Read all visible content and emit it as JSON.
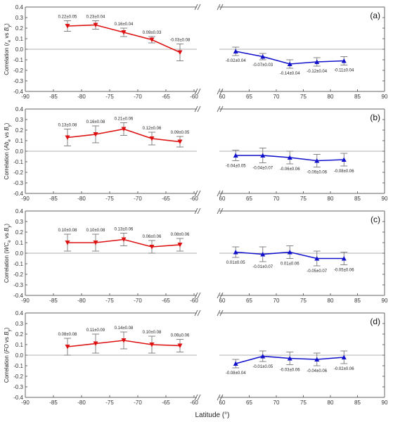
{
  "xlabel": "Latitude (°)",
  "colors": {
    "south": "#dd1111",
    "north": "#1111cc",
    "error": "#777777",
    "axis": "#666666",
    "zero": "#999999"
  },
  "chart_data": [
    {
      "type": "line",
      "panel_label": "(a)",
      "ylabel": {
        "prefix": "Correlation (",
        "var": "r",
        "var_sub": "e",
        "mid": " vs ",
        "b": "B",
        "b_sub": "y",
        "suffix": ")"
      },
      "ylim": [
        -0.4,
        0.4
      ],
      "yticks": [
        "-0.4",
        "-0.3",
        "-0.2",
        "-0.1",
        "0.0",
        "0.1",
        "0.2",
        "0.3",
        "0.4"
      ],
      "xticks_south": [
        "-90",
        "-85",
        "-80",
        "-75",
        "-70",
        "-65",
        "-60"
      ],
      "xticks_north": [
        "60",
        "65",
        "70",
        "75",
        "80",
        "85",
        "90"
      ],
      "south": {
        "x": [
          -82.5,
          -77.5,
          -72.5,
          -67.5,
          -62.5
        ],
        "y": [
          0.22,
          0.23,
          0.16,
          0.09,
          -0.03
        ],
        "err": [
          0.05,
          0.04,
          0.04,
          0.03,
          0.08
        ],
        "labels": [
          "0.22±0.05",
          "0.23±0.04",
          "0.16±0.04",
          "0.09±0.03",
          "-0.03±0.08"
        ]
      },
      "north": {
        "x": [
          62.5,
          67.5,
          72.5,
          77.5,
          82.5
        ],
        "y": [
          -0.02,
          -0.07,
          -0.14,
          -0.12,
          -0.11
        ],
        "err": [
          0.04,
          0.03,
          0.04,
          0.04,
          0.04
        ],
        "labels": [
          "-0.02±0.04",
          "-0.07±0.03",
          "-0.14±0.04",
          "-0.12±0.04",
          "-0.11±0.04"
        ]
      }
    },
    {
      "type": "line",
      "panel_label": "(b)",
      "ylabel": {
        "prefix": "Correlation (",
        "var": "Ab",
        "var_sub": "e",
        "mid": " vs ",
        "b": "B",
        "b_sub": "y",
        "suffix": ")"
      },
      "ylim": [
        -0.4,
        0.4
      ],
      "yticks": [
        "-0.4",
        "-0.3",
        "-0.2",
        "-0.1",
        "0.0",
        "0.1",
        "0.2",
        "0.3",
        "0.4"
      ],
      "xticks_south": [
        "-90",
        "-85",
        "-80",
        "-75",
        "-70",
        "-65",
        "-60"
      ],
      "xticks_north": [
        "60",
        "65",
        "70",
        "75",
        "80",
        "85",
        "90"
      ],
      "south": {
        "x": [
          -82.5,
          -77.5,
          -72.5,
          -67.5,
          -62.5
        ],
        "y": [
          0.13,
          0.16,
          0.21,
          0.12,
          0.09
        ],
        "err": [
          0.08,
          0.08,
          0.06,
          0.06,
          0.05
        ],
        "labels": [
          "0.13±0.08",
          "0.16±0.08",
          "0.21±0.06",
          "0.12±0.06",
          "0.09±0.05"
        ]
      },
      "north": {
        "x": [
          62.5,
          67.5,
          72.5,
          77.5,
          82.5
        ],
        "y": [
          -0.04,
          -0.04,
          -0.06,
          -0.09,
          -0.08
        ],
        "err": [
          0.05,
          0.07,
          0.06,
          0.06,
          0.06
        ],
        "labels": [
          "-0.04±0.05",
          "-0.04±0.07",
          "-0.06±0.06",
          "-0.09±0.06",
          "-0.08±0.06"
        ]
      }
    },
    {
      "type": "line",
      "panel_label": "(c)",
      "ylabel": {
        "prefix": "Correlation (",
        "var": "WC",
        "var_sub": "e",
        "mid": " vs ",
        "b": "B",
        "b_sub": "y",
        "suffix": ")"
      },
      "ylim": [
        -0.4,
        0.4
      ],
      "yticks": [
        "-0.4",
        "-0.3",
        "-0.2",
        "-0.1",
        "0.0",
        "0.1",
        "0.2",
        "0.3",
        "0.4"
      ],
      "xticks_south": [
        "-90",
        "-85",
        "-80",
        "-75",
        "-70",
        "-65",
        "-60"
      ],
      "xticks_north": [
        "60",
        "65",
        "70",
        "75",
        "80",
        "85",
        "90"
      ],
      "south": {
        "x": [
          -82.5,
          -77.5,
          -72.5,
          -67.5,
          -62.5
        ],
        "y": [
          0.1,
          0.1,
          0.13,
          0.06,
          0.08
        ],
        "err": [
          0.08,
          0.08,
          0.06,
          0.06,
          0.06
        ],
        "labels": [
          "0.10±0.08",
          "0.10±0.08",
          "0.13±0.06",
          "0.06±0.06",
          "0.08±0.06"
        ]
      },
      "north": {
        "x": [
          62.5,
          67.5,
          72.5,
          77.5,
          82.5
        ],
        "y": [
          0.01,
          -0.01,
          0.01,
          -0.05,
          -0.05
        ],
        "err": [
          0.05,
          0.07,
          0.06,
          0.07,
          0.06
        ],
        "labels": [
          "0.01±0.05",
          "-0.01±0.07",
          "0.01±0.06",
          "-0.05±0.07",
          "-0.05±0.06"
        ]
      }
    },
    {
      "type": "line",
      "panel_label": "(d)",
      "ylabel": {
        "prefix": "Correlation (",
        "var": "FO",
        "var_sub": "",
        "mid": " vs ",
        "b": "B",
        "b_sub": "y",
        "suffix": ")"
      },
      "ylim": [
        -0.4,
        0.4
      ],
      "yticks": [
        "-0.4",
        "-0.3",
        "-0.2",
        "-0.1",
        "0.0",
        "0.1",
        "0.2",
        "0.3",
        "0.4"
      ],
      "xticks_south": [
        "-90",
        "-85",
        "-80",
        "-75",
        "-70",
        "-65",
        "-60"
      ],
      "xticks_north": [
        "60",
        "65",
        "70",
        "75",
        "80",
        "85",
        "90"
      ],
      "south": {
        "x": [
          -82.5,
          -77.5,
          -72.5,
          -67.5,
          -62.5
        ],
        "y": [
          0.08,
          0.11,
          0.14,
          0.1,
          0.09
        ],
        "err": [
          0.08,
          0.09,
          0.08,
          0.08,
          0.06
        ],
        "labels": [
          "0.08±0.08",
          "0.11±0.09",
          "0.14±0.08",
          "0.10±0.08",
          "0.09±0.06"
        ]
      },
      "north": {
        "x": [
          62.5,
          67.5,
          72.5,
          77.5,
          82.5
        ],
        "y": [
          -0.08,
          -0.01,
          -0.03,
          -0.04,
          -0.02
        ],
        "err": [
          0.04,
          0.05,
          0.06,
          0.06,
          0.06
        ],
        "labels": [
          "-0.08±0.04",
          "-0.01±0.05",
          "-0.03±0.06",
          "-0.04±0.06",
          "-0.02±0.06"
        ]
      }
    }
  ]
}
